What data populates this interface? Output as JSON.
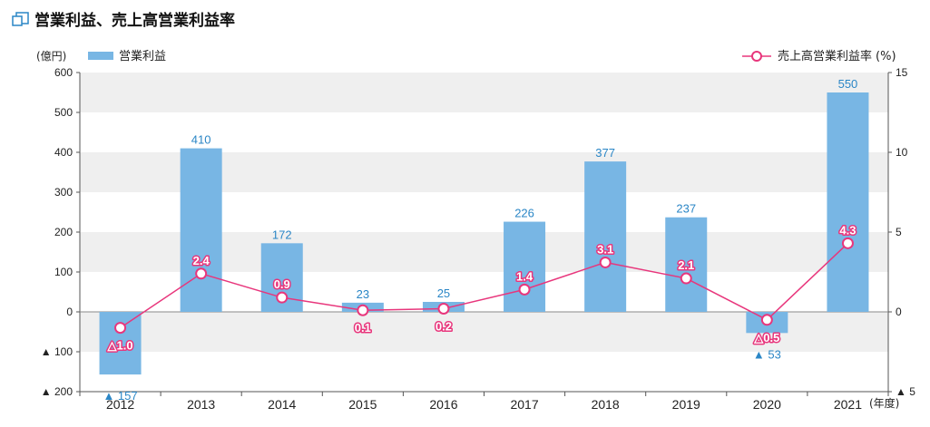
{
  "page": {
    "title": "営業利益、売上高営業利益率"
  },
  "colors": {
    "bar": "#78b6e4",
    "bar_label": "#2a86c6",
    "line": "#e8367c",
    "band": "#efefef",
    "title_icon": "#2a86c6"
  },
  "icons": {
    "title": "window-icon"
  },
  "chart_data": {
    "type": "bar",
    "categories": [
      "2012",
      "2013",
      "2014",
      "2015",
      "2016",
      "2017",
      "2018",
      "2019",
      "2020",
      "2021"
    ],
    "x_unit": "(年度)",
    "y_left": {
      "unit": "(億円)",
      "ylim": [
        -200,
        600
      ],
      "ticks": [
        600,
        500,
        400,
        300,
        200,
        100,
        0,
        -100,
        -200
      ],
      "tick_labels": [
        "600",
        "500",
        "400",
        "300",
        "200",
        "100",
        "0",
        "▲ 100",
        "▲ 200"
      ]
    },
    "y_right": {
      "unit": "(%)",
      "ylim": [
        -5,
        15
      ],
      "ticks": [
        15,
        10,
        5,
        0,
        -5
      ],
      "tick_labels": [
        "15",
        "10",
        "5",
        "0",
        "▲ 5"
      ]
    },
    "series": [
      {
        "name": "営業利益",
        "type": "bar",
        "axis": "left",
        "values": [
          -157,
          410,
          172,
          23,
          25,
          226,
          377,
          237,
          -53,
          550
        ],
        "labels": [
          "▲ 157",
          "410",
          "172",
          "23",
          "25",
          "226",
          "377",
          "237",
          "▲ 53",
          "550"
        ]
      },
      {
        "name": "売上高営業利益率",
        "type": "line",
        "axis": "right",
        "values": [
          -1.0,
          2.4,
          0.9,
          0.1,
          0.2,
          1.4,
          3.1,
          2.1,
          -0.5,
          4.3
        ],
        "labels": [
          "△1.0",
          "2.4",
          "0.9",
          "0.1",
          "0.2",
          "1.4",
          "3.1",
          "2.1",
          "△0.5",
          "4.3"
        ]
      }
    ],
    "grid": "alternating horizontal bands",
    "legend": {
      "bar_label": "営業利益",
      "line_label": "売上高営業利益率",
      "line_unit": "(%)",
      "placement": "top"
    }
  }
}
